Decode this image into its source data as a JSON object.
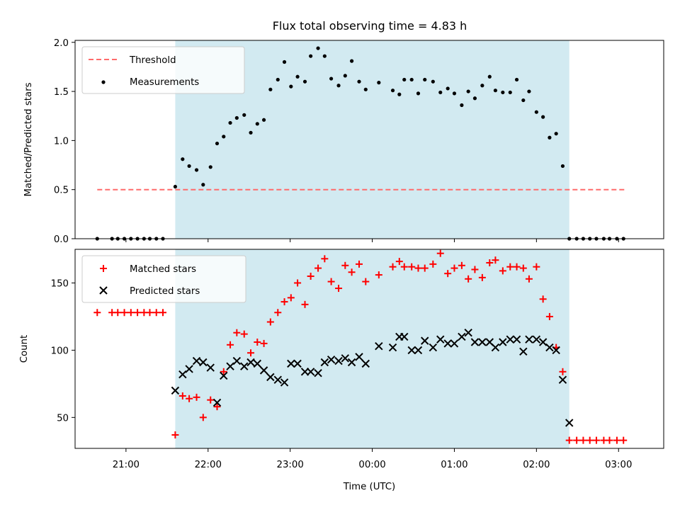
{
  "title": "Flux total observing time = 4.83 h",
  "colors": {
    "shade": "#add8e6",
    "threshold": "#ff6b6b",
    "measurement": "#000000",
    "matched": "#ff0000",
    "predicted": "#000000"
  },
  "chart_data": [
    {
      "type": "scatter",
      "ylabel": "Matched/Predicted stars",
      "xlabel": "",
      "xlim": [
        20.38,
        27.55
      ],
      "ylim": [
        0,
        2.02
      ],
      "yticks": [
        0.0,
        0.5,
        1.0,
        1.5,
        2.0
      ],
      "ytick_labels": [
        "0.0",
        "0.5",
        "1.0",
        "1.5",
        "2.0"
      ],
      "legend": {
        "location": "upper-left",
        "entries": [
          "Threshold",
          "Measurements"
        ]
      },
      "shaded_span": [
        21.6,
        26.4
      ],
      "threshold": {
        "name": "Threshold",
        "y": 0.5,
        "x_range": [
          20.65,
          27.1
        ]
      },
      "series": [
        {
          "name": "Measurements",
          "x": [
            20.65,
            20.83,
            20.9,
            20.98,
            21.06,
            21.14,
            21.22,
            21.29,
            21.37,
            21.45,
            21.6,
            21.69,
            21.77,
            21.86,
            21.94,
            22.03,
            22.11,
            22.19,
            22.27,
            22.35,
            22.44,
            22.52,
            22.6,
            22.68,
            22.76,
            22.85,
            22.93,
            23.01,
            23.09,
            23.18,
            23.25,
            23.34,
            23.42,
            23.5,
            23.59,
            23.67,
            23.75,
            23.84,
            23.92,
            24.08,
            24.25,
            24.33,
            24.39,
            24.48,
            24.56,
            24.64,
            24.74,
            24.83,
            24.92,
            25.0,
            25.09,
            25.17,
            25.25,
            25.34,
            25.43,
            25.5,
            25.59,
            25.68,
            25.76,
            25.84,
            25.91,
            26.0,
            26.08,
            26.16,
            26.24,
            26.32,
            26.4,
            26.49,
            26.57,
            26.65,
            26.73,
            26.82,
            26.89,
            26.98,
            27.06
          ],
          "y": [
            0.0,
            0.0,
            0.0,
            0.0,
            0.0,
            0.0,
            0.0,
            0.0,
            0.0,
            0.0,
            0.53,
            0.81,
            0.74,
            0.7,
            0.55,
            0.73,
            0.97,
            1.04,
            1.18,
            1.23,
            1.26,
            1.08,
            1.17,
            1.21,
            1.52,
            1.62,
            1.8,
            1.55,
            1.65,
            1.6,
            1.86,
            1.94,
            1.86,
            1.63,
            1.56,
            1.66,
            1.81,
            1.6,
            1.52,
            1.59,
            1.51,
            1.47,
            1.62,
            1.62,
            1.48,
            1.62,
            1.6,
            1.49,
            1.53,
            1.48,
            1.36,
            1.5,
            1.43,
            1.56,
            1.65,
            1.51,
            1.49,
            1.49,
            1.62,
            1.41,
            1.5,
            1.29,
            1.24,
            1.03,
            1.07,
            0.74,
            0.0,
            0.0,
            0.0,
            0.0,
            0.0,
            0.0,
            0.0,
            0.0,
            0.0
          ]
        }
      ]
    },
    {
      "type": "scatter",
      "ylabel": "Count",
      "xlabel": "Time (UTC)",
      "xlim": [
        20.38,
        27.55
      ],
      "ylim": [
        27,
        175
      ],
      "yticks": [
        50,
        100,
        150
      ],
      "ytick_labels": [
        "50",
        "100",
        "150"
      ],
      "xticks": [
        21,
        22,
        23,
        24,
        25,
        26,
        27
      ],
      "xtick_labels": [
        "21:00",
        "22:00",
        "23:00",
        "00:00",
        "01:00",
        "02:00",
        "03:00"
      ],
      "legend": {
        "location": "upper-left",
        "entries": [
          "Matched stars",
          "Predicted stars"
        ]
      },
      "shaded_span": [
        21.6,
        26.4
      ],
      "series": [
        {
          "name": "Matched stars",
          "marker": "plus",
          "x": [
            20.65,
            20.83,
            20.9,
            20.98,
            21.06,
            21.14,
            21.22,
            21.29,
            21.37,
            21.45,
            21.6,
            21.69,
            21.77,
            21.86,
            21.94,
            22.03,
            22.11,
            22.19,
            22.27,
            22.35,
            22.44,
            22.52,
            22.6,
            22.68,
            22.76,
            22.85,
            22.93,
            23.01,
            23.09,
            23.18,
            23.25,
            23.34,
            23.42,
            23.5,
            23.59,
            23.67,
            23.75,
            23.84,
            23.92,
            24.08,
            24.25,
            24.33,
            24.39,
            24.48,
            24.56,
            24.64,
            24.74,
            24.83,
            24.92,
            25.0,
            25.09,
            25.17,
            25.25,
            25.34,
            25.43,
            25.5,
            25.59,
            25.68,
            25.76,
            25.84,
            25.91,
            26.0,
            26.08,
            26.16,
            26.24,
            26.32,
            26.4,
            26.49,
            26.57,
            26.65,
            26.73,
            26.82,
            26.89,
            26.98,
            27.06
          ],
          "y": [
            128,
            128,
            128,
            128,
            128,
            128,
            128,
            128,
            128,
            128,
            37,
            66,
            64,
            65,
            50,
            63,
            58,
            84,
            104,
            113,
            112,
            98,
            106,
            105,
            121,
            128,
            136,
            139,
            150,
            134,
            155,
            161,
            168,
            151,
            146,
            163,
            158,
            164,
            151,
            156,
            162,
            166,
            162,
            162,
            161,
            161,
            164,
            172,
            157,
            161,
            163,
            153,
            160,
            154,
            165,
            167,
            159,
            162,
            162,
            161,
            153,
            162,
            138,
            125,
            102,
            84,
            33,
            33,
            33,
            33,
            33,
            33,
            33,
            33,
            33
          ]
        },
        {
          "name": "Predicted stars",
          "marker": "x",
          "x": [
            21.6,
            21.69,
            21.77,
            21.86,
            21.94,
            22.03,
            22.11,
            22.19,
            22.27,
            22.35,
            22.44,
            22.52,
            22.6,
            22.68,
            22.76,
            22.85,
            22.93,
            23.01,
            23.09,
            23.18,
            23.25,
            23.34,
            23.42,
            23.5,
            23.59,
            23.67,
            23.75,
            23.84,
            23.92,
            24.08,
            24.25,
            24.33,
            24.39,
            24.48,
            24.56,
            24.64,
            24.74,
            24.83,
            24.92,
            25.0,
            25.09,
            25.17,
            25.25,
            25.34,
            25.43,
            25.5,
            25.59,
            25.68,
            25.76,
            25.84,
            25.91,
            26.0,
            26.08,
            26.16,
            26.24,
            26.32,
            26.4
          ],
          "y": [
            70,
            82,
            86,
            92,
            91,
            87,
            61,
            81,
            88,
            92,
            88,
            91,
            90,
            85,
            80,
            78,
            76,
            90,
            90,
            84,
            84,
            83,
            91,
            93,
            92,
            94,
            91,
            95,
            90,
            103,
            102,
            110,
            110,
            100,
            100,
            107,
            102,
            108,
            105,
            105,
            110,
            113,
            106,
            106,
            106,
            102,
            106,
            108,
            108,
            99,
            108,
            108,
            106,
            102,
            100,
            78,
            46
          ]
        }
      ]
    }
  ]
}
